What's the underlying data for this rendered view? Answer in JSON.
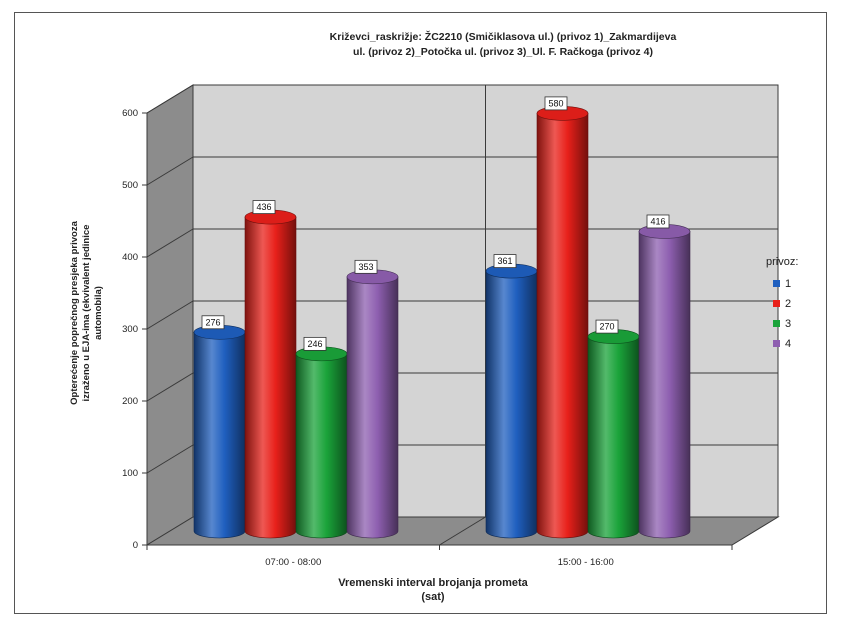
{
  "chart_data": {
    "type": "bar",
    "style": "3d-cylinder",
    "title": "Križevci_raskrižje: ŽC2210 (Smičiklasova ul.) (privoz 1)_Zakmardijeva ul. (privoz 2)_Potočka ul. (privoz 3)_Ul. F. Račkoga (privoz 4)",
    "title_lines": [
      "Križevci_raskrižje: ŽC2210 (Smičiklasova ul.) (privoz 1)_Zakmardijeva",
      "ul. (privoz 2)_Potočka ul. (privoz 3)_Ul. F. Račkoga (privoz 4)"
    ],
    "ylabel_lines": [
      "Opterećenje poprečnog presjeka privoza",
      "izraženo u EJA-ima (ekvivalent jedinice",
      "automobila)"
    ],
    "xlabel_lines": [
      "Vremenski interval brojanja prometa",
      "(sat)"
    ],
    "categories": [
      "07:00 - 08:00",
      "15:00 - 16:00"
    ],
    "series": [
      {
        "name": "1",
        "values": [
          276,
          361
        ],
        "color": "#1f5fbf"
      },
      {
        "name": "2",
        "values": [
          436,
          580
        ],
        "color": "#e8201a"
      },
      {
        "name": "3",
        "values": [
          246,
          270
        ],
        "color": "#1aa33a"
      },
      {
        "name": "4",
        "values": [
          353,
          416
        ],
        "color": "#8e5fb0"
      }
    ],
    "yticks": [
      "0",
      "100",
      "200",
      "300",
      "400",
      "500",
      "600"
    ],
    "ylim": [
      0,
      600
    ],
    "grid": true,
    "legend": {
      "title": "privoz:",
      "position": "right"
    }
  }
}
